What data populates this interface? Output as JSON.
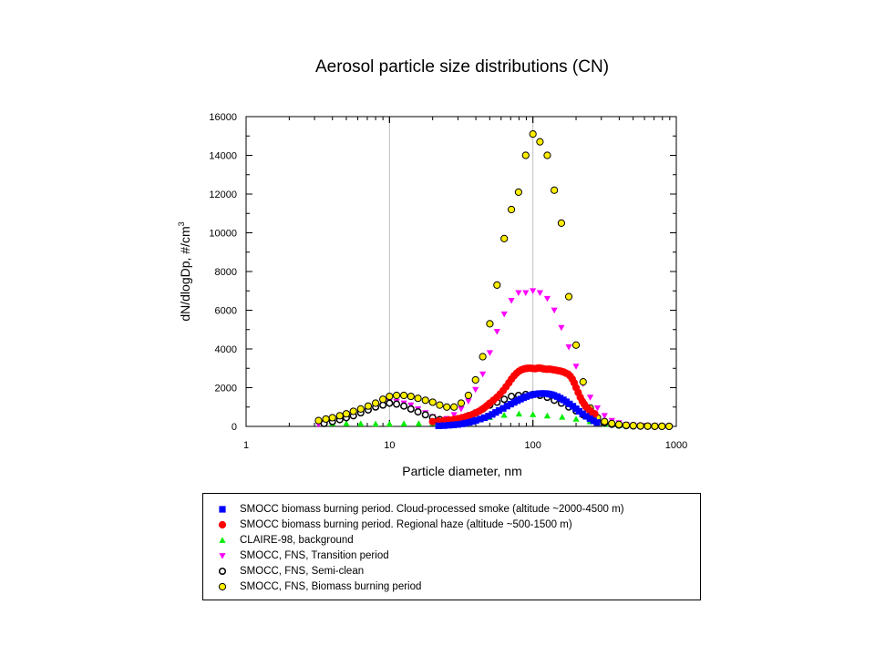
{
  "chart_data": {
    "type": "scatter",
    "title": "Aerosol particle size distributions (CN)",
    "xlabel": "Particle diameter,  nm",
    "ylabel": "dN/dlogDp,  #/cm",
    "ylabel_sup": "3",
    "x_scale": "log",
    "xlim": [
      1,
      1000
    ],
    "ylim": [
      0,
      16000
    ],
    "x_ticks": [
      "1",
      "10",
      "100",
      "1000"
    ],
    "y_ticks": [
      "0",
      "2000",
      "4000",
      "6000",
      "8000",
      "10000",
      "12000",
      "14000",
      "16000"
    ],
    "grid": "major lines at x=10, x=100 and y=0",
    "legend_position": "bottom",
    "series": [
      {
        "name": "SMOCC biomass burning period. Cloud-processed smoke  (altitude ~2000-4500 m)",
        "marker": "square",
        "color": "#0000ff",
        "x": [
          22,
          24,
          26,
          28,
          30,
          32,
          34,
          36,
          38,
          40,
          43,
          46,
          49,
          52,
          55,
          58,
          62,
          66,
          70,
          74,
          78,
          82,
          86,
          90,
          95,
          100,
          105,
          110,
          115,
          120,
          125,
          130,
          135,
          140,
          148,
          155,
          163,
          171,
          180,
          190,
          200,
          210,
          222,
          235,
          250,
          265,
          280
        ],
        "y": [
          30,
          40,
          60,
          80,
          100,
          130,
          170,
          210,
          260,
          310,
          380,
          450,
          530,
          620,
          720,
          820,
          930,
          1050,
          1150,
          1240,
          1330,
          1410,
          1480,
          1540,
          1600,
          1640,
          1670,
          1690,
          1700,
          1700,
          1690,
          1670,
          1640,
          1600,
          1540,
          1460,
          1370,
          1270,
          1160,
          1040,
          910,
          780,
          650,
          520,
          400,
          290,
          200
        ]
      },
      {
        "name": "SMOCC biomass burning period. Regional haze (altitude ~500-1500 m)",
        "marker": "circle",
        "color": "#ff0000",
        "x": [
          20,
          22,
          24,
          26,
          28,
          30,
          32,
          34,
          36,
          38,
          40,
          42,
          44,
          46,
          48,
          50,
          53,
          56,
          59,
          62,
          65,
          68,
          71,
          74,
          77,
          80,
          83,
          86,
          89,
          92,
          95,
          98,
          101,
          104,
          107,
          110,
          113,
          116,
          119,
          122,
          126,
          130,
          135,
          140,
          145,
          150,
          155,
          160,
          165,
          170,
          176,
          182,
          188,
          194,
          200,
          207,
          214,
          221,
          228,
          235,
          243,
          251,
          260,
          270
        ],
        "y": [
          250,
          270,
          300,
          330,
          360,
          400,
          450,
          500,
          560,
          620,
          700,
          780,
          870,
          970,
          1080,
          1200,
          1350,
          1500,
          1670,
          1850,
          2050,
          2250,
          2450,
          2620,
          2750,
          2850,
          2920,
          2960,
          2990,
          3000,
          3010,
          3000,
          2990,
          2980,
          3000,
          3020,
          3010,
          2990,
          2970,
          2960,
          2950,
          2960,
          2940,
          2920,
          2900,
          2880,
          2860,
          2830,
          2800,
          2750,
          2700,
          2600,
          2450,
          2250,
          2000,
          1750,
          1500,
          1300,
          1150,
          1000,
          900,
          800,
          700,
          650
        ]
      },
      {
        "name": "CLAIRE-98, background",
        "marker": "triangle-up",
        "color": "#00ee00",
        "x": [
          3.2,
          4.0,
          5.0,
          6.3,
          8.0,
          10,
          12.6,
          16,
          20,
          25,
          32,
          40,
          50,
          63,
          80,
          100,
          126,
          160,
          200,
          250,
          320,
          400
        ],
        "y": [
          300,
          150,
          150,
          140,
          130,
          130,
          140,
          150,
          170,
          200,
          260,
          350,
          470,
          580,
          650,
          620,
          550,
          480,
          380,
          250,
          120,
          50
        ]
      },
      {
        "name": "SMOCC, FNS, Transition period",
        "marker": "triangle-down",
        "color": "#ff00ff",
        "x": [
          3.2,
          3.6,
          4.0,
          4.5,
          5.0,
          5.6,
          6.3,
          7.1,
          8.0,
          9.0,
          10,
          11.2,
          12.6,
          14.1,
          15.8,
          17.8,
          20,
          22.4,
          25.1,
          28.2,
          31.6,
          35.5,
          39.8,
          44.7,
          50.1,
          56.2,
          63.1,
          70.8,
          79.4,
          89.1,
          100,
          112,
          126,
          141,
          158,
          178,
          200,
          224,
          251,
          282,
          316,
          355,
          398,
          447,
          501,
          562,
          631,
          708,
          794,
          891
        ],
        "y": [
          100,
          180,
          250,
          350,
          450,
          600,
          750,
          900,
          1050,
          1200,
          1300,
          1280,
          1200,
          1100,
          900,
          700,
          500,
          350,
          400,
          600,
          900,
          1300,
          1900,
          2700,
          3800,
          4900,
          5800,
          6500,
          6900,
          6900,
          7000,
          6900,
          6600,
          6000,
          5100,
          4100,
          3100,
          2200,
          1500,
          950,
          550,
          300,
          180,
          100,
          60,
          40,
          30,
          20,
          15,
          10
        ]
      },
      {
        "name": "SMOCC, FNS, Semi-clean",
        "marker": "circle-open",
        "color": "#000000",
        "x": [
          3.5,
          4.0,
          4.5,
          5.0,
          5.6,
          6.3,
          7.1,
          8.0,
          9.0,
          10,
          11.2,
          12.6,
          14.1,
          15.8,
          17.8,
          20,
          22.4,
          25.1,
          28.2,
          31.6,
          35.5,
          39.8,
          44.7,
          50.1,
          56.2,
          63.1,
          70.8,
          79.4,
          89.1,
          100,
          112,
          126,
          141,
          158,
          178,
          200,
          224,
          251,
          282,
          316,
          355,
          398,
          447,
          501,
          562,
          631,
          708,
          794,
          891
        ],
        "y": [
          150,
          250,
          350,
          450,
          550,
          700,
          850,
          1000,
          1100,
          1200,
          1150,
          1050,
          900,
          750,
          600,
          450,
          350,
          300,
          330,
          400,
          550,
          700,
          900,
          1100,
          1250,
          1400,
          1550,
          1600,
          1650,
          1650,
          1600,
          1500,
          1350,
          1200,
          1000,
          800,
          600,
          420,
          280,
          180,
          110,
          70,
          40,
          25,
          15,
          10,
          5,
          5,
          3
        ]
      },
      {
        "name": "SMOCC, FNS, Biomass burning period",
        "marker": "circle",
        "color": "#ffee00",
        "x": [
          3.2,
          3.6,
          4.0,
          4.5,
          5.0,
          5.6,
          6.3,
          7.1,
          8.0,
          9.0,
          10,
          11.2,
          12.6,
          14.1,
          15.8,
          17.8,
          20,
          22.4,
          25.1,
          28.2,
          31.6,
          35.5,
          39.8,
          44.7,
          50.1,
          56.2,
          63.1,
          70.8,
          79.4,
          89.1,
          100,
          112,
          126,
          141,
          158,
          178,
          200,
          224,
          251,
          282,
          316,
          355,
          398,
          447,
          501,
          562,
          631,
          708,
          794,
          891
        ],
        "y": [
          300,
          380,
          450,
          550,
          650,
          780,
          900,
          1050,
          1200,
          1400,
          1550,
          1600,
          1600,
          1550,
          1450,
          1350,
          1250,
          1100,
          1000,
          1000,
          1200,
          1600,
          2400,
          3600,
          5300,
          7300,
          9700,
          11200,
          12100,
          14000,
          15100,
          14700,
          14000,
          12200,
          10500,
          6700,
          4200,
          2300,
          950,
          450,
          250,
          150,
          100,
          60,
          40,
          25,
          15,
          10,
          5,
          3
        ]
      }
    ]
  }
}
